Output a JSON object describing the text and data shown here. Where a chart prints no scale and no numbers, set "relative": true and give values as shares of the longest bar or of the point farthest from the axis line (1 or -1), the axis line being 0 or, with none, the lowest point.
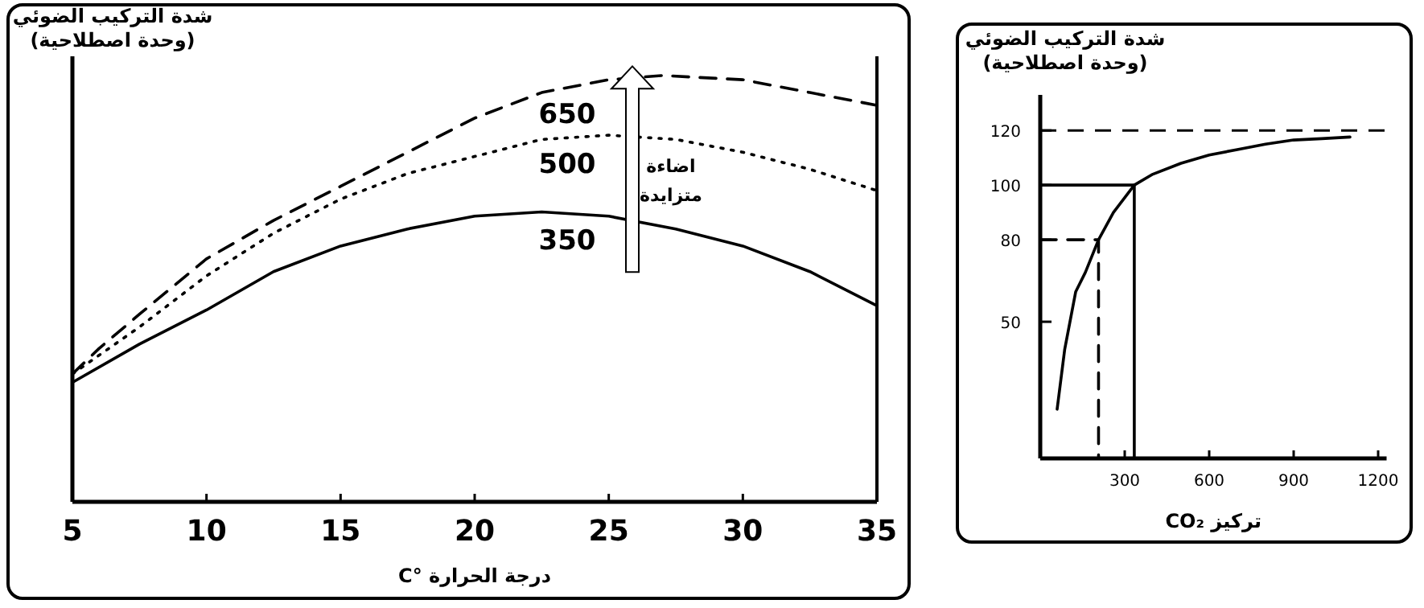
{
  "chart_data": [
    {
      "type": "line",
      "relative": true,
      "xlabel": "درجة الحرارة °C",
      "ylabel": "شدة التركيب الضوئي\n(وحدة اصطلاحية)",
      "xlim": [
        5,
        35
      ],
      "xticks": [
        5,
        10,
        15,
        20,
        25,
        30,
        35
      ],
      "series": [
        {
          "name": "650",
          "color": "#000000",
          "line_style": "dashed",
          "x": [
            5,
            6,
            7.5,
            10,
            12.5,
            15,
            17.5,
            20,
            22.5,
            25,
            27,
            30,
            32.5,
            35
          ],
          "values": [
            0.3,
            0.36,
            0.44,
            0.57,
            0.66,
            0.74,
            0.82,
            0.9,
            0.96,
            0.99,
            1.0,
            0.99,
            0.96,
            0.93
          ]
        },
        {
          "name": "500",
          "color": "#000000",
          "line_style": "dotted",
          "x": [
            5,
            7.5,
            10,
            12.5,
            15,
            17.5,
            20,
            22.5,
            25,
            27.5,
            30,
            32.5,
            35
          ],
          "values": [
            0.3,
            0.41,
            0.53,
            0.63,
            0.71,
            0.77,
            0.81,
            0.85,
            0.86,
            0.85,
            0.82,
            0.78,
            0.73
          ]
        },
        {
          "name": "350",
          "color": "#000000",
          "line_style": "solid",
          "x": [
            5,
            7.5,
            10,
            12.5,
            15,
            17.5,
            20,
            22.5,
            25,
            27.5,
            30,
            32.5,
            35
          ],
          "values": [
            0.28,
            0.37,
            0.45,
            0.54,
            0.6,
            0.64,
            0.67,
            0.68,
            0.67,
            0.64,
            0.6,
            0.54,
            0.46
          ]
        }
      ],
      "annotations": [
        "اضاءة\nمتزايدة"
      ]
    },
    {
      "type": "line",
      "xlabel": "تركيز CO₂",
      "ylabel": "شدة التركيب الضوئي\n(وحدة اصطلاحية)",
      "xlim": [
        0,
        1230
      ],
      "xticks": [
        300,
        600,
        900,
        1200
      ],
      "ylim": [
        0,
        133
      ],
      "yticks": [
        50,
        80,
        100,
        120
      ],
      "series": [
        {
          "color": "#000000",
          "line_style": "solid",
          "x": [
            60,
            87,
            126,
            160,
            207,
            260,
            334,
            400,
            500,
            600,
            700,
            800,
            900,
            1000,
            1100
          ],
          "values": [
            18,
            40,
            61,
            68,
            80,
            90,
            100,
            104,
            108,
            111,
            113,
            115,
            116.5,
            117,
            117.6
          ]
        },
        {
          "color": "#000000",
          "line_style": "solid",
          "x": [
            0,
            334,
            334
          ],
          "values": [
            100,
            100,
            0
          ]
        },
        {
          "color": "#000000",
          "line_style": "dashed",
          "x": [
            0,
            207,
            207
          ],
          "values": [
            80,
            80,
            0
          ]
        }
      ],
      "ref_lines": [
        {
          "axis": "y",
          "value": 120,
          "line_style": "dashed",
          "color": "#000000"
        }
      ]
    }
  ]
}
